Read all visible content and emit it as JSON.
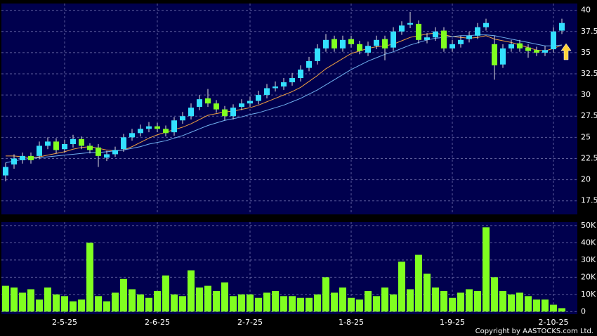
{
  "chart_data": [
    {
      "type": "candlestick",
      "open": [
        20.5,
        21.8,
        22.3,
        22.8,
        22.8,
        24.0,
        24.5,
        23.6,
        24.2,
        24.8,
        24.0,
        23.8,
        22.6,
        23.0,
        23.6,
        25.0,
        25.5,
        26.0,
        26.3,
        26.0,
        25.6,
        27.0,
        27.5,
        28.6,
        29.6,
        29.0,
        28.3,
        27.5,
        28.6,
        29.0,
        29.3,
        30.0,
        30.8,
        31.0,
        31.5,
        32.0,
        33.2,
        34.0,
        35.5,
        36.6,
        35.5,
        36.6,
        36.0,
        35.0,
        35.8,
        36.6,
        35.6,
        37.5,
        38.3,
        38.4,
        36.5,
        36.8,
        37.6,
        35.5,
        36.0,
        36.6,
        37.0,
        38.0,
        36.0,
        33.6,
        35.5,
        36.1,
        35.6,
        35.3,
        35.0,
        35.4,
        37.6
      ],
      "high": [
        22.0,
        23.0,
        23.2,
        23.2,
        24.5,
        25.0,
        24.9,
        24.7,
        25.3,
        25.1,
        24.3,
        24.2,
        23.4,
        23.9,
        25.4,
        26.0,
        26.5,
        26.8,
        26.7,
        26.4,
        27.4,
        28.0,
        29.0,
        30.0,
        30.7,
        29.4,
        28.7,
        28.9,
        29.5,
        29.8,
        30.5,
        31.3,
        31.6,
        32.0,
        32.6,
        33.5,
        34.5,
        36.0,
        37.2,
        37.0,
        37.0,
        37.0,
        36.4,
        36.3,
        37.0,
        37.0,
        38.0,
        38.7,
        39.8,
        38.8,
        37.3,
        38.0,
        38.0,
        36.5,
        37.0,
        37.5,
        38.5,
        39.0,
        37.0,
        36.0,
        36.5,
        36.5,
        36.0,
        35.7,
        35.8,
        38.0,
        39.0
      ],
      "low": [
        19.8,
        21.3,
        21.9,
        21.9,
        22.4,
        23.6,
        23.1,
        23.2,
        23.8,
        23.6,
        23.1,
        21.5,
        22.2,
        22.7,
        23.3,
        24.6,
        25.1,
        25.6,
        25.6,
        25.1,
        25.2,
        26.6,
        27.1,
        28.2,
        28.6,
        27.9,
        27.0,
        27.1,
        28.2,
        28.6,
        28.9,
        29.6,
        30.4,
        30.6,
        31.1,
        31.6,
        32.8,
        33.6,
        35.1,
        35.1,
        35.1,
        35.6,
        34.8,
        34.6,
        35.4,
        34.1,
        35.2,
        37.1,
        37.9,
        36.1,
        36.1,
        36.4,
        35.1,
        35.1,
        35.6,
        36.2,
        36.6,
        37.6,
        31.8,
        33.2,
        35.1,
        35.1,
        34.4,
        34.6,
        34.6,
        35.0,
        37.2
      ],
      "close": [
        21.5,
        22.5,
        22.8,
        22.3,
        24.0,
        24.5,
        23.5,
        24.2,
        24.8,
        24.0,
        23.5,
        22.8,
        23.0,
        23.5,
        25.0,
        25.5,
        26.0,
        26.3,
        26.0,
        25.5,
        27.0,
        27.5,
        28.5,
        29.5,
        29.0,
        28.3,
        27.5,
        28.5,
        29.0,
        29.3,
        30.0,
        30.8,
        31.0,
        31.5,
        32.0,
        33.0,
        34.0,
        35.5,
        36.5,
        35.5,
        36.5,
        36.0,
        35.2,
        35.8,
        36.5,
        35.5,
        37.5,
        38.2,
        38.5,
        36.5,
        36.8,
        37.5,
        35.5,
        36.0,
        36.5,
        37.0,
        38.0,
        38.5,
        33.5,
        35.5,
        36.0,
        35.5,
        35.2,
        35.0,
        35.3,
        37.5,
        38.5
      ],
      "up_color": "#33e0ff",
      "down_color": "#80ff20",
      "series": [
        {
          "type": "line",
          "color": "#f0a040",
          "values": [
            22.8,
            22.8,
            22.7,
            22.6,
            22.7,
            22.9,
            23.1,
            23.3,
            23.6,
            23.8,
            23.9,
            23.7,
            23.5,
            23.4,
            23.5,
            23.9,
            24.4,
            24.9,
            25.3,
            25.6,
            25.9,
            26.2,
            26.6,
            27.1,
            27.6,
            27.8,
            28.0,
            28.1,
            28.3,
            28.5,
            28.8,
            29.2,
            29.6,
            30.0,
            30.4,
            30.9,
            31.6,
            32.3,
            33.1,
            33.7,
            34.3,
            34.9,
            35.2,
            35.5,
            35.7,
            35.8,
            36.0,
            36.4,
            36.8,
            37.0,
            37.2,
            37.3,
            37.1,
            36.9,
            36.8,
            36.7,
            36.8,
            37.0,
            36.6,
            36.4,
            36.2,
            35.9,
            35.6,
            35.3,
            35.2,
            35.5,
            35.9
          ]
        },
        {
          "type": "line",
          "color": "#70b0f0",
          "values": [
            22.0,
            22.2,
            22.4,
            22.5,
            22.6,
            22.7,
            22.8,
            22.9,
            23.0,
            23.1,
            23.2,
            23.2,
            23.3,
            23.4,
            23.5,
            23.7,
            23.9,
            24.2,
            24.4,
            24.6,
            24.9,
            25.2,
            25.6,
            26.0,
            26.4,
            26.7,
            27.0,
            27.2,
            27.4,
            27.7,
            27.9,
            28.2,
            28.5,
            28.8,
            29.2,
            29.6,
            30.1,
            30.6,
            31.2,
            31.8,
            32.4,
            33.0,
            33.5,
            34.0,
            34.4,
            34.8,
            35.1,
            35.5,
            35.9,
            36.2,
            36.5,
            36.7,
            36.8,
            36.9,
            37.0,
            37.0,
            37.1,
            37.1,
            37.0,
            36.8,
            36.6,
            36.4,
            36.2,
            36.0,
            35.8,
            35.8,
            35.9
          ]
        }
      ],
      "ylim": [
        15.9,
        40.8
      ],
      "yticks": [
        17.5,
        20,
        22.5,
        25,
        27.5,
        30,
        32.5,
        35,
        37.5,
        40
      ],
      "grid": true
    },
    {
      "type": "bar",
      "categories": [
        null,
        null,
        null,
        null,
        null,
        null,
        null,
        "2-5-25",
        null,
        null,
        null,
        null,
        null,
        null,
        null,
        null,
        null,
        null,
        "2-6-25",
        null,
        null,
        null,
        null,
        null,
        null,
        null,
        null,
        null,
        null,
        "2-7-25",
        null,
        null,
        null,
        null,
        null,
        null,
        null,
        null,
        null,
        null,
        null,
        "1-8-25",
        null,
        null,
        null,
        null,
        null,
        null,
        null,
        null,
        null,
        null,
        null,
        "1-9-25",
        null,
        null,
        null,
        null,
        null,
        null,
        null,
        null,
        null,
        null,
        null,
        "2-10-25",
        null
      ],
      "values": [
        15000,
        14000,
        11000,
        13000,
        7000,
        14000,
        10000,
        9000,
        6000,
        7000,
        40000,
        9000,
        6000,
        11000,
        19000,
        13000,
        10000,
        8000,
        12000,
        21000,
        10000,
        9000,
        24000,
        14000,
        15000,
        12000,
        17000,
        9000,
        10000,
        10000,
        8000,
        11000,
        12000,
        9000,
        9000,
        8000,
        8000,
        10000,
        20000,
        11000,
        14000,
        8000,
        7000,
        12000,
        9000,
        14000,
        10000,
        29000,
        13000,
        33000,
        22000,
        14000,
        12000,
        8000,
        11000,
        13000,
        12000,
        49000,
        20000,
        12000,
        10000,
        11000,
        9000,
        7000,
        7000,
        4000,
        2000
      ],
      "color": "#80ff20",
      "ylim": [
        -1500,
        52000
      ],
      "yticks": [
        {
          "value": 50000,
          "label": "50K"
        },
        {
          "value": 40000,
          "label": "40K"
        },
        {
          "value": 30000,
          "label": "30K"
        },
        {
          "value": 20000,
          "label": "20K"
        },
        {
          "value": 10000,
          "label": "10K"
        },
        0
      ],
      "grid": true
    }
  ],
  "footer": "Copyright by AASTOCKS.com Ltd."
}
